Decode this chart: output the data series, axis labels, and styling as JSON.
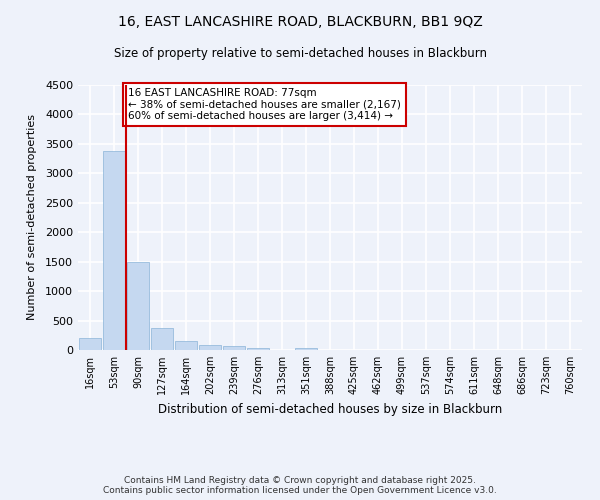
{
  "title_line1": "16, EAST LANCASHIRE ROAD, BLACKBURN, BB1 9QZ",
  "title_line2": "Size of property relative to semi-detached houses in Blackburn",
  "xlabel": "Distribution of semi-detached houses by size in Blackburn",
  "ylabel": "Number of semi-detached properties",
  "footer_line1": "Contains HM Land Registry data © Crown copyright and database right 2025.",
  "footer_line2": "Contains public sector information licensed under the Open Government Licence v3.0.",
  "annotation_line1": "16 EAST LANCASHIRE ROAD: 77sqm",
  "annotation_line2": "← 38% of semi-detached houses are smaller (2,167)",
  "annotation_line3": "60% of semi-detached houses are larger (3,414) →",
  "bar_color": "#c5d8f0",
  "bar_edge_color": "#8ab4d8",
  "marker_color": "#cc0000",
  "background_color": "#eef2fa",
  "grid_color": "#ffffff",
  "categories": [
    "16sqm",
    "53sqm",
    "90sqm",
    "127sqm",
    "164sqm",
    "202sqm",
    "239sqm",
    "276sqm",
    "313sqm",
    "351sqm",
    "388sqm",
    "425sqm",
    "462sqm",
    "499sqm",
    "537sqm",
    "574sqm",
    "611sqm",
    "648sqm",
    "686sqm",
    "723sqm",
    "760sqm"
  ],
  "values": [
    200,
    3380,
    1500,
    380,
    155,
    90,
    60,
    30,
    0,
    30,
    0,
    0,
    0,
    0,
    0,
    0,
    0,
    0,
    0,
    0,
    0
  ],
  "property_bin_index": 1.5,
  "ylim": [
    0,
    4500
  ],
  "yticks": [
    0,
    500,
    1000,
    1500,
    2000,
    2500,
    3000,
    3500,
    4000,
    4500
  ]
}
